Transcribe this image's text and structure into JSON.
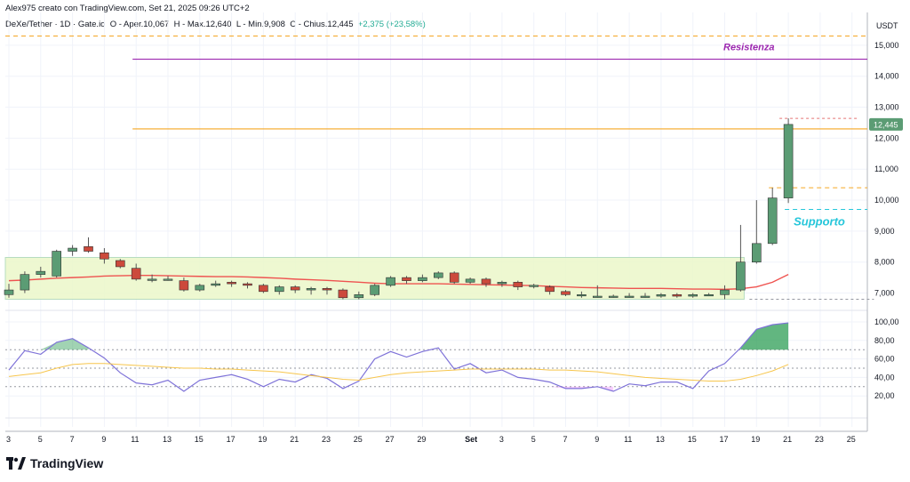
{
  "header": {
    "credit": "Alex975 creato con TradingView.com, Set 21, 2025 09:26 UTC+2",
    "symbol": "DeXe/Tether · 1D · Gate.io",
    "ohlc_open": "O - Aper.10,067",
    "ohlc_high": "H - Max.12,640",
    "ohlc_low": "L - Min.9,908",
    "ohlc_close": "C - Chius.12,445",
    "ohlc_change": "+2,375 (+23,58%)"
  },
  "axis": {
    "currency": "USDT"
  },
  "brand": {
    "name": "TradingView"
  },
  "colors": {
    "up": "#5b9c74",
    "down": "#cc4a3c",
    "ma": "#ef5350",
    "resistance": "#9c27b0",
    "support_text": "#26c6da",
    "orange": "#f5a623",
    "rsi": "#7e72d8",
    "rsi_ma": "#f7c64d",
    "zone": "#ebf7c9",
    "price_tag": "#5b9c74"
  },
  "chart_data": [
    {
      "type": "candlestick",
      "title": "DeXe/Tether 1D Gate.io",
      "y_ticks": [
        "15,000",
        "14,000",
        "13,000",
        "12,000",
        "11,000",
        "10,000",
        "9,000",
        "8,000",
        "7,000"
      ],
      "ylim": [
        6.7,
        15.6
      ],
      "last_price_label": "12,445",
      "x_ticks": [
        {
          "i": 0,
          "label": "3"
        },
        {
          "i": 2,
          "label": "5"
        },
        {
          "i": 4,
          "label": "7"
        },
        {
          "i": 6,
          "label": "9"
        },
        {
          "i": 8,
          "label": "11"
        },
        {
          "i": 10,
          "label": "13"
        },
        {
          "i": 12,
          "label": "15"
        },
        {
          "i": 14,
          "label": "17"
        },
        {
          "i": 16,
          "label": "19"
        },
        {
          "i": 18,
          "label": "21"
        },
        {
          "i": 20,
          "label": "23"
        },
        {
          "i": 22,
          "label": "25"
        },
        {
          "i": 24,
          "label": "27"
        },
        {
          "i": 26,
          "label": "29"
        },
        {
          "i": 29,
          "label": "Set"
        },
        {
          "i": 31,
          "label": "3"
        },
        {
          "i": 33,
          "label": "5"
        },
        {
          "i": 35,
          "label": "7"
        },
        {
          "i": 37,
          "label": "9"
        },
        {
          "i": 39,
          "label": "11"
        },
        {
          "i": 41,
          "label": "13"
        },
        {
          "i": 43,
          "label": "15"
        },
        {
          "i": 45,
          "label": "17"
        },
        {
          "i": 47,
          "label": "19"
        },
        {
          "i": 49,
          "label": "21"
        },
        {
          "i": 51,
          "label": "23"
        },
        {
          "i": 53,
          "label": "25"
        }
      ],
      "candles": [
        [
          6.95,
          7.1,
          7.3,
          6.85
        ],
        [
          7.1,
          7.6,
          7.7,
          7.0
        ],
        [
          7.6,
          7.7,
          7.85,
          7.5
        ],
        [
          7.55,
          8.35,
          8.4,
          7.5
        ],
        [
          8.35,
          8.45,
          8.55,
          8.2
        ],
        [
          8.5,
          8.35,
          8.8,
          8.3
        ],
        [
          8.3,
          8.1,
          8.45,
          7.95
        ],
        [
          8.05,
          7.85,
          8.1,
          7.8
        ],
        [
          7.8,
          7.45,
          7.95,
          7.4
        ],
        [
          7.45,
          7.45,
          7.6,
          7.35
        ],
        [
          7.45,
          7.45,
          7.55,
          7.4
        ],
        [
          7.4,
          7.1,
          7.5,
          7.05
        ],
        [
          7.1,
          7.25,
          7.3,
          7.05
        ],
        [
          7.25,
          7.3,
          7.4,
          7.2
        ],
        [
          7.35,
          7.3,
          7.4,
          7.2
        ],
        [
          7.3,
          7.25,
          7.35,
          7.15
        ],
        [
          7.25,
          7.05,
          7.3,
          7.0
        ],
        [
          7.05,
          7.2,
          7.25,
          6.95
        ],
        [
          7.2,
          7.1,
          7.25,
          7.0
        ],
        [
          7.1,
          7.15,
          7.2,
          6.95
        ],
        [
          7.15,
          7.1,
          7.2,
          6.95
        ],
        [
          7.1,
          6.85,
          7.15,
          6.8
        ],
        [
          6.85,
          6.95,
          7.05,
          6.8
        ],
        [
          6.95,
          7.25,
          7.3,
          6.9
        ],
        [
          7.25,
          7.5,
          7.55,
          7.2
        ],
        [
          7.5,
          7.4,
          7.55,
          7.3
        ],
        [
          7.4,
          7.5,
          7.6,
          7.35
        ],
        [
          7.5,
          7.65,
          7.7,
          7.45
        ],
        [
          7.65,
          7.35,
          7.7,
          7.3
        ],
        [
          7.35,
          7.45,
          7.5,
          7.3
        ],
        [
          7.45,
          7.3,
          7.5,
          7.2
        ],
        [
          7.3,
          7.35,
          7.4,
          7.2
        ],
        [
          7.35,
          7.2,
          7.4,
          7.1
        ],
        [
          7.25,
          7.25,
          7.3,
          7.15
        ],
        [
          7.2,
          7.05,
          7.25,
          6.95
        ],
        [
          7.05,
          6.95,
          7.1,
          6.9
        ],
        [
          6.95,
          6.95,
          7.05,
          6.85
        ],
        [
          6.9,
          6.9,
          7.25,
          6.85
        ],
        [
          6.9,
          6.9,
          6.95,
          6.85
        ],
        [
          6.9,
          6.9,
          7.0,
          6.85
        ],
        [
          6.9,
          6.9,
          7.0,
          6.85
        ],
        [
          6.9,
          6.95,
          7.0,
          6.85
        ],
        [
          6.95,
          6.9,
          7.0,
          6.85
        ],
        [
          6.9,
          6.95,
          7.0,
          6.85
        ],
        [
          6.95,
          6.95,
          7.0,
          6.9
        ],
        [
          6.95,
          7.1,
          7.25,
          6.8
        ],
        [
          7.1,
          8.0,
          9.2,
          7.05
        ],
        [
          8.0,
          8.6,
          10.0,
          7.95
        ],
        [
          8.6,
          10.07,
          10.4,
          8.55
        ],
        [
          10.07,
          12.445,
          12.64,
          9.908
        ]
      ],
      "ma": [
        7.4,
        7.42,
        7.45,
        7.48,
        7.5,
        7.52,
        7.55,
        7.56,
        7.57,
        7.57,
        7.56,
        7.55,
        7.54,
        7.53,
        7.53,
        7.52,
        7.5,
        7.48,
        7.45,
        7.43,
        7.41,
        7.38,
        7.35,
        7.32,
        7.3,
        7.3,
        7.3,
        7.3,
        7.29,
        7.28,
        7.27,
        7.26,
        7.25,
        7.24,
        7.22,
        7.2,
        7.18,
        7.17,
        7.16,
        7.15,
        7.15,
        7.15,
        7.14,
        7.13,
        7.13,
        7.12,
        7.14,
        7.2,
        7.35,
        7.6
      ],
      "levels": [
        {
          "label": "Resistenza",
          "price": 14.55,
          "color": "#9c27b0",
          "from_index": 8
        },
        {
          "label": "",
          "price": 12.3,
          "color": "#f5a623",
          "from_index": 8
        },
        {
          "label": "",
          "price": 15.3,
          "color": "#f5a623",
          "dashed": true,
          "from_index": 0
        },
        {
          "label": "Supporto",
          "price": 9.7,
          "color": "#26c6da",
          "dashed": true,
          "from_index": 49
        },
        {
          "label": "",
          "price": 10.4,
          "color": "#f5a623",
          "dashed": true,
          "from_index": 48
        }
      ],
      "zone": {
        "y_low": 6.8,
        "y_high": 8.15,
        "from_index": 0,
        "to_index": 46
      }
    },
    {
      "type": "line",
      "title": "RSI",
      "y_ticks": [
        "100,00",
        "80,00",
        "60,00",
        "40,00",
        "20,00"
      ],
      "ylim": [
        0,
        105
      ],
      "reference_lines": [
        70,
        50,
        30
      ],
      "series": [
        {
          "color": "#7e72d8",
          "values": [
            48,
            69,
            65,
            78,
            82,
            72,
            61,
            45,
            34,
            32,
            37,
            25,
            37,
            40,
            43,
            38,
            30,
            38,
            35,
            43,
            39,
            28,
            36,
            60,
            68,
            62,
            68,
            72,
            49,
            55,
            45,
            48,
            40,
            38,
            35,
            28,
            28,
            30,
            25,
            33,
            31,
            35,
            35,
            28,
            47,
            55,
            72,
            92,
            97,
            99
          ]
        },
        {
          "color": "#f7c64d",
          "values": [
            41,
            43,
            45,
            50,
            54,
            55,
            55,
            54,
            53,
            52,
            51,
            50,
            50,
            49,
            49,
            48,
            47,
            46,
            44,
            42,
            40,
            38,
            37,
            40,
            43,
            45,
            46,
            47,
            48,
            49,
            49,
            49,
            49,
            49,
            48,
            48,
            47,
            46,
            44,
            42,
            40,
            39,
            38,
            37,
            36,
            36,
            38,
            42,
            47,
            54
          ]
        }
      ]
    }
  ]
}
